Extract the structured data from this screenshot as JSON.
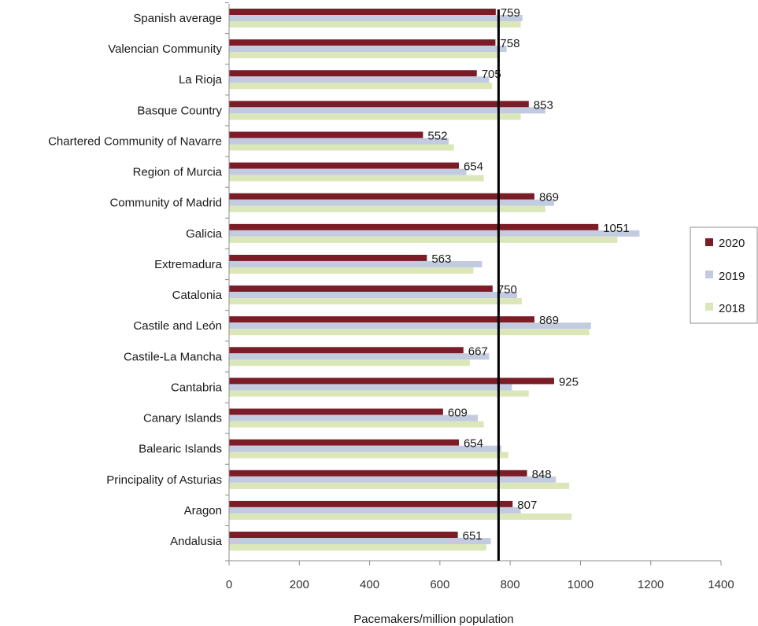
{
  "chart_data": {
    "type": "bar",
    "orientation": "horizontal",
    "categories": [
      "Spanish average",
      "Valencian Community",
      "La Rioja",
      "Basque Country",
      "Chartered Community of Navarre",
      "Region of Murcia",
      "Community of Madrid",
      "Galicia",
      "Extremadura",
      "Catalonia",
      "Castile and León",
      "Castile-La Mancha",
      "Cantabria",
      "Canary Islands",
      "Balearic Islands",
      "Principality of Asturias",
      "Aragon",
      "Andalusia"
    ],
    "series": [
      {
        "name": "2020",
        "color": "#7b1c26",
        "values": [
          759,
          758,
          705,
          853,
          552,
          654,
          869,
          1051,
          563,
          750,
          869,
          667,
          925,
          609,
          654,
          848,
          807,
          651
        ],
        "data_labels": [
          "759",
          "758",
          "705",
          "853",
          "552",
          "654",
          "869",
          "1051",
          "563",
          "750",
          "869",
          "667",
          "925",
          "609",
          "654",
          "848",
          "807",
          "651"
        ]
      },
      {
        "name": "2019",
        "color": "#c3cbe0",
        "values": [
          835,
          790,
          740,
          900,
          625,
          675,
          925,
          1168,
          720,
          820,
          1030,
          740,
          805,
          708,
          775,
          930,
          830,
          745
        ]
      },
      {
        "name": "2018",
        "color": "#dbe7b8",
        "values": [
          830,
          770,
          748,
          830,
          640,
          725,
          900,
          1105,
          695,
          833,
          1025,
          685,
          853,
          725,
          795,
          968,
          975,
          732
        ]
      }
    ],
    "reference_line": {
      "value": 767,
      "color": "#000000"
    },
    "xlabel": "Pacemakers/million population",
    "xlim": [
      0,
      1400
    ],
    "xticks": [
      0,
      200,
      400,
      600,
      800,
      1000,
      1200,
      1400
    ],
    "xtick_labels": [
      "0",
      "200",
      "400",
      "600",
      "800",
      "1000",
      "1200",
      "1400"
    ],
    "grid": false,
    "legend": {
      "placement": "right",
      "entries": [
        "2020",
        "2019",
        "2018"
      ]
    }
  }
}
